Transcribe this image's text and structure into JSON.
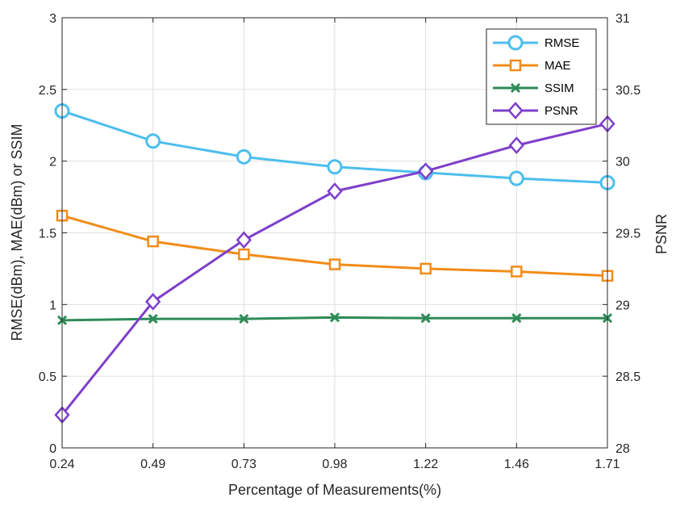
{
  "chart_data": {
    "type": "line",
    "title": "",
    "xlabel": "Percentage of Measurements(%)",
    "ylabel_left": "RMSE(dBm), MAE(dBm) or SSIM",
    "ylabel_right": "PSNR",
    "categories": [
      "0.24",
      "0.49",
      "0.73",
      "0.98",
      "1.22",
      "1.46",
      "1.71"
    ],
    "ylim_left": [
      0,
      3
    ],
    "ylim_right": [
      28,
      31
    ],
    "yticks_left": [
      "0",
      "0.5",
      "1",
      "1.5",
      "2",
      "2.5",
      "3"
    ],
    "yticks_right": [
      "28",
      "28.5",
      "29",
      "29.5",
      "30",
      "30.5",
      "31"
    ],
    "grid": true,
    "legend_position": "top-right",
    "series": [
      {
        "name": "RMSE",
        "axis": "left",
        "color": "#4DBEEE",
        "marker": "circle",
        "values": [
          2.35,
          2.14,
          2.03,
          1.96,
          1.92,
          1.88,
          1.85
        ]
      },
      {
        "name": "MAE",
        "axis": "left",
        "color": "#F28C1A",
        "marker": "square",
        "values": [
          1.62,
          1.44,
          1.35,
          1.28,
          1.25,
          1.23,
          1.2
        ]
      },
      {
        "name": "SSIM",
        "axis": "left",
        "color": "#2E8B57",
        "marker": "x",
        "values": [
          0.89,
          0.9,
          0.9,
          0.91,
          0.905,
          0.905,
          0.905
        ]
      },
      {
        "name": "PSNR",
        "axis": "right",
        "color": "#7E3FCB",
        "marker": "diamond",
        "values": [
          28.23,
          29.02,
          29.45,
          29.79,
          29.93,
          30.11,
          30.26
        ]
      }
    ]
  }
}
